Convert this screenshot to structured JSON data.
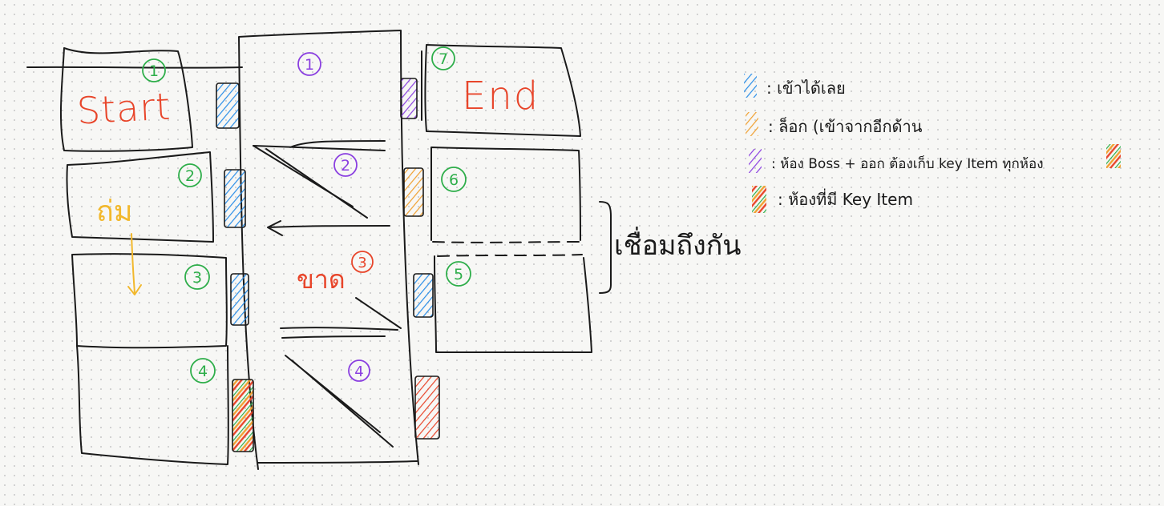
{
  "colors": {
    "ink": "#1a1a1a",
    "green": "#2eae4a",
    "purple": "#8a3fe0",
    "red": "#e8452a",
    "yellow": "#f2b82c",
    "blue": "#2a8ee8",
    "orange": "#f0a030"
  },
  "left_rooms": {
    "start": {
      "number": "1",
      "label": "Start"
    },
    "room2": {
      "number": "2",
      "label": "ถ่ม"
    },
    "room3": {
      "number": "3"
    },
    "room4": {
      "number": "4"
    }
  },
  "middle": {
    "n1": "1",
    "n2": "2",
    "n3": "3",
    "n4": "4",
    "broken_label": "ขาด"
  },
  "right_rooms": {
    "end": {
      "number": "7",
      "label": "End"
    },
    "room6": {
      "number": "6"
    },
    "room5": {
      "number": "5"
    },
    "connect_label": "เชื่อมถึงกัน"
  },
  "legend": [
    {
      "swatch": "blue",
      "text": ": เข้าได้เลย"
    },
    {
      "swatch": "orange",
      "text": ": ล็อก (เข้าจากอีกด้าน"
    },
    {
      "swatch": "purple",
      "text": ": ห้อง Boss + ออก ต้องเก็บ key Item ทุกห้อง"
    },
    {
      "swatch": "multi",
      "text": ": ห้องที่มี Key Item"
    }
  ]
}
